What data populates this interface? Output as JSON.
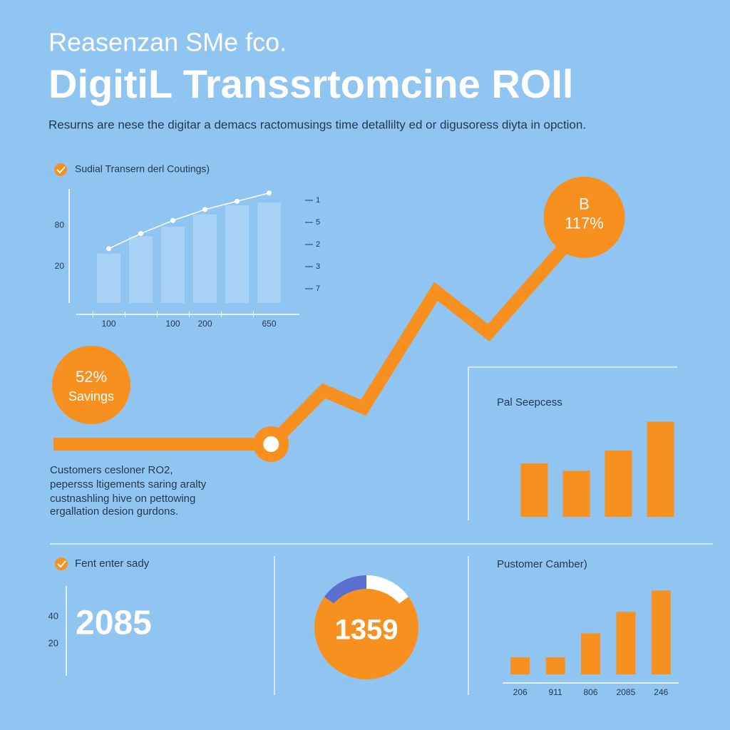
{
  "header": {
    "kicker": "Reasenzan SMe fco.",
    "title": "DigitiL Transsrtomcine ROIl",
    "subtitle": "Resurns are nese the digitar a demacs ractomusings time detallilty ed or digusoress diyta in opction."
  },
  "chart_data": [
    {
      "type": "bar_line",
      "title": "Sudial Transern derl Coutings)",
      "categories": [
        "100",
        null,
        "100",
        "200",
        null,
        "650"
      ],
      "values": [
        39,
        64,
        78,
        96,
        109,
        113
      ],
      "line_values": [
        46,
        68,
        87,
        103,
        115,
        127
      ],
      "color": "#a9d2f7",
      "line_color": "#ffffff",
      "ylim": [
        -33,
        133
      ],
      "yticks": [
        20,
        80
      ],
      "right_labels": [
        "1",
        "5",
        "2",
        "3",
        "7"
      ]
    },
    {
      "type": "line",
      "x": [
        0,
        33,
        41,
        47,
        58,
        66,
        78
      ],
      "values": [
        5,
        5,
        27,
        20,
        68,
        51,
        88
      ],
      "xlim": [
        0,
        100
      ],
      "ylim": [
        0,
        100
      ],
      "color": "#f7901e",
      "badge_top": "B",
      "badge_value": "117%",
      "savings_value": "52%",
      "savings_label": "Savings"
    },
    {
      "type": "bar",
      "title": "Pal Seepcess",
      "values": [
        50,
        43,
        62,
        89
      ],
      "ylim": [
        0,
        100
      ],
      "color": "#f7901e"
    },
    {
      "type": "pie",
      "values": [
        15,
        15,
        70
      ],
      "colors": [
        "#5b6fcf",
        "#ffffff",
        "#f7901e"
      ],
      "center_label": "1359"
    },
    {
      "type": "bar",
      "title": "Pustomer Camber)",
      "categories": [
        "206",
        "911",
        "806",
        "2085",
        "246"
      ],
      "values": [
        20,
        20,
        48,
        73,
        98
      ],
      "ylim": [
        0,
        100
      ],
      "color": "#f7901e"
    }
  ],
  "notes": {
    "lines": [
      "Customers cesloner RO2,",
      "pepersss ltigements saring aralty",
      "custnashling hive on pettowing",
      "ergallation desion gurdons."
    ]
  },
  "stat_panel": {
    "title": "Fent enter sady",
    "ticks": [
      "40",
      "20"
    ],
    "value": "2085"
  }
}
